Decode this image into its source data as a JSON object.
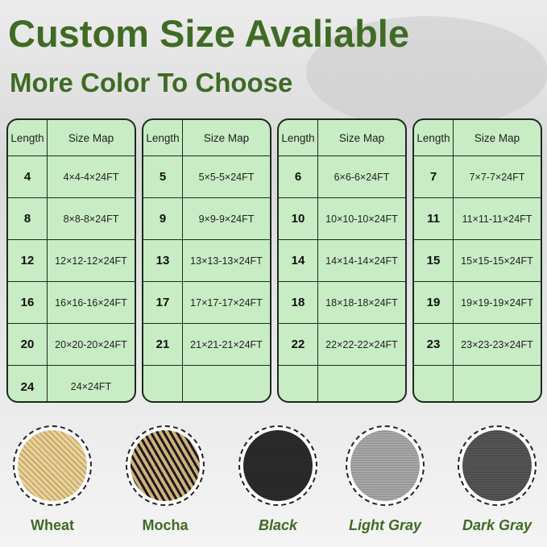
{
  "title": "Custom Size Avaliable",
  "subtitle": "More Color To Choose",
  "table_header": {
    "length": "Length",
    "size_map": "Size Map"
  },
  "tables": [
    {
      "rows": [
        {
          "length": "4",
          "size": "4×4-4×24FT"
        },
        {
          "length": "8",
          "size": "8×8-8×24FT"
        },
        {
          "length": "12",
          "size": "12×12-12×24FT"
        },
        {
          "length": "16",
          "size": "16×16-16×24FT"
        },
        {
          "length": "20",
          "size": "20×20-20×24FT"
        },
        {
          "length": "24",
          "size": "24×24FT"
        }
      ]
    },
    {
      "rows": [
        {
          "length": "5",
          "size": "5×5-5×24FT"
        },
        {
          "length": "9",
          "size": "9×9-9×24FT"
        },
        {
          "length": "13",
          "size": "13×13-13×24FT"
        },
        {
          "length": "17",
          "size": "17×17-17×24FT"
        },
        {
          "length": "21",
          "size": "21×21-21×24FT"
        },
        {
          "length": "",
          "size": ""
        }
      ]
    },
    {
      "rows": [
        {
          "length": "6",
          "size": "6×6-6×24FT"
        },
        {
          "length": "10",
          "size": "10×10-10×24FT"
        },
        {
          "length": "14",
          "size": "14×14-14×24FT"
        },
        {
          "length": "18",
          "size": "18×18-18×24FT"
        },
        {
          "length": "22",
          "size": "22×22-22×24FT"
        },
        {
          "length": "",
          "size": ""
        }
      ]
    },
    {
      "rows": [
        {
          "length": "7",
          "size": "7×7-7×24FT"
        },
        {
          "length": "11",
          "size": "11×11-11×24FT"
        },
        {
          "length": "15",
          "size": "15×15-15×24FT"
        },
        {
          "length": "19",
          "size": "19×19-19×24FT"
        },
        {
          "length": "23",
          "size": "23×23-23×24FT"
        },
        {
          "length": "",
          "size": ""
        }
      ]
    }
  ],
  "colors": [
    {
      "name": "Wheat",
      "swatch": "#dcbf82",
      "italic": false
    },
    {
      "name": "Mocha",
      "swatch": "#7a6548",
      "italic": false
    },
    {
      "name": "Black",
      "swatch": "#2b2b2b",
      "italic": true
    },
    {
      "name": "Light Gray",
      "swatch": "#a8a8a8",
      "italic": true
    },
    {
      "name": "Dark Gray",
      "swatch": "#555555",
      "italic": true
    }
  ],
  "accent": "#3f6b25"
}
